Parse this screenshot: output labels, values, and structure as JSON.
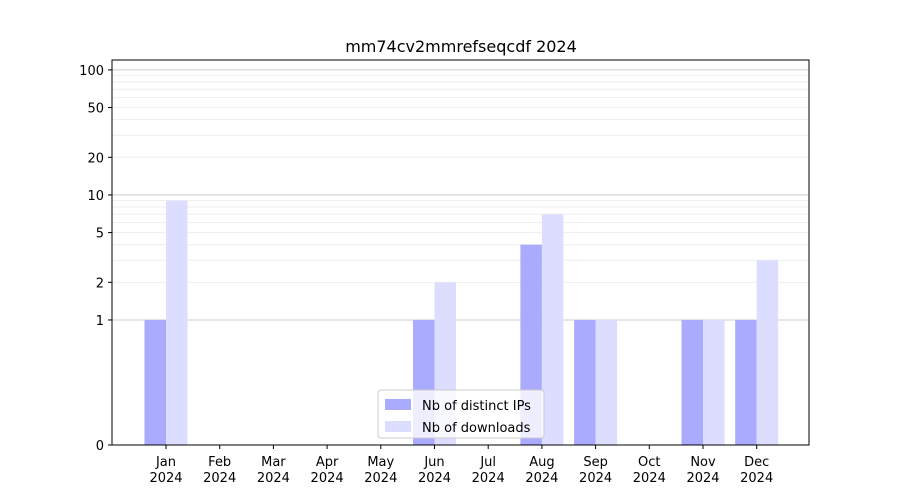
{
  "chart_data": {
    "type": "bar",
    "title": "mm74cv2mmrefseqcdf 2024",
    "xlabel": "",
    "ylabel": "",
    "y_scale": "symlog",
    "ylim": [
      0,
      120
    ],
    "yticks": [
      0,
      1,
      2,
      5,
      10,
      20,
      50,
      100
    ],
    "ytick_labels": [
      "0",
      "1",
      "2",
      "5",
      "10",
      "20",
      "50",
      "100"
    ],
    "categories": [
      "Jan\n2024",
      "Feb\n2024",
      "Mar\n2024",
      "Apr\n2024",
      "May\n2024",
      "Jun\n2024",
      "Jul\n2024",
      "Aug\n2024",
      "Sep\n2024",
      "Oct\n2024",
      "Nov\n2024",
      "Dec\n2024"
    ],
    "series": [
      {
        "name": "Nb of distinct IPs",
        "color": "#aaaaff",
        "values": [
          1,
          0,
          0,
          0,
          0,
          1,
          0,
          4,
          1,
          0,
          1,
          1
        ]
      },
      {
        "name": "Nb of downloads",
        "color": "#ddddff",
        "values": [
          9,
          0,
          0,
          0,
          0,
          2,
          0,
          7,
          1,
          0,
          1,
          3
        ]
      }
    ],
    "grid": true,
    "legend_position": "lower center"
  }
}
